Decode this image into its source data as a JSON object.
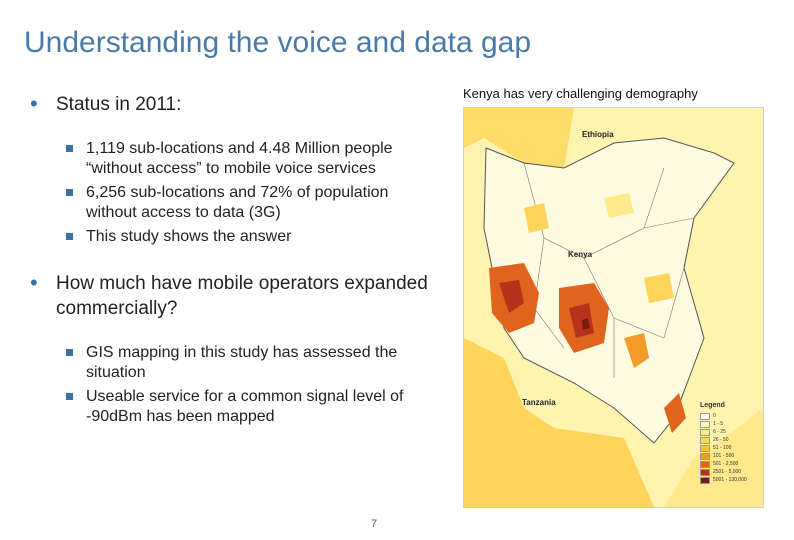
{
  "slide": {
    "title": "Understanding the voice and data gap",
    "page_number": "7"
  },
  "bullets": [
    {
      "text": "Status in 2011:",
      "sub": [
        "1,119 sub-locations and 4.48 Million people “without access” to mobile voice services",
        "6,256 sub-locations and 72% of population without access to data (3G)",
        "This study shows the answer"
      ]
    },
    {
      "text": "How much have mobile operators expanded commercially?",
      "sub": [
        "GIS mapping in this study has assessed the situation",
        "Useable service for a common signal level of -90dBm has been mapped"
      ]
    }
  ],
  "map": {
    "caption": "Kenya has very challenging demography",
    "labels": {
      "ethiopia": "Ethiopia",
      "kenya": "Kenya",
      "tanzania": "Tanzania"
    },
    "legend": {
      "title": "Legend",
      "items": [
        {
          "label": "0",
          "color": "#ffffff"
        },
        {
          "label": "1 - 5",
          "color": "#fff6c4"
        },
        {
          "label": "6 - 25",
          "color": "#ffe98a"
        },
        {
          "label": "26 - 50",
          "color": "#ffd45a"
        },
        {
          "label": "51 - 100",
          "color": "#ffbe3a"
        },
        {
          "label": "101 - 500",
          "color": "#f39a2a"
        },
        {
          "label": "501 - 2,500",
          "color": "#e0641e"
        },
        {
          "label": "2501 - 5,000",
          "color": "#b7321a"
        },
        {
          "label": "5001 - 130,000",
          "color": "#7a1a10"
        }
      ]
    }
  }
}
